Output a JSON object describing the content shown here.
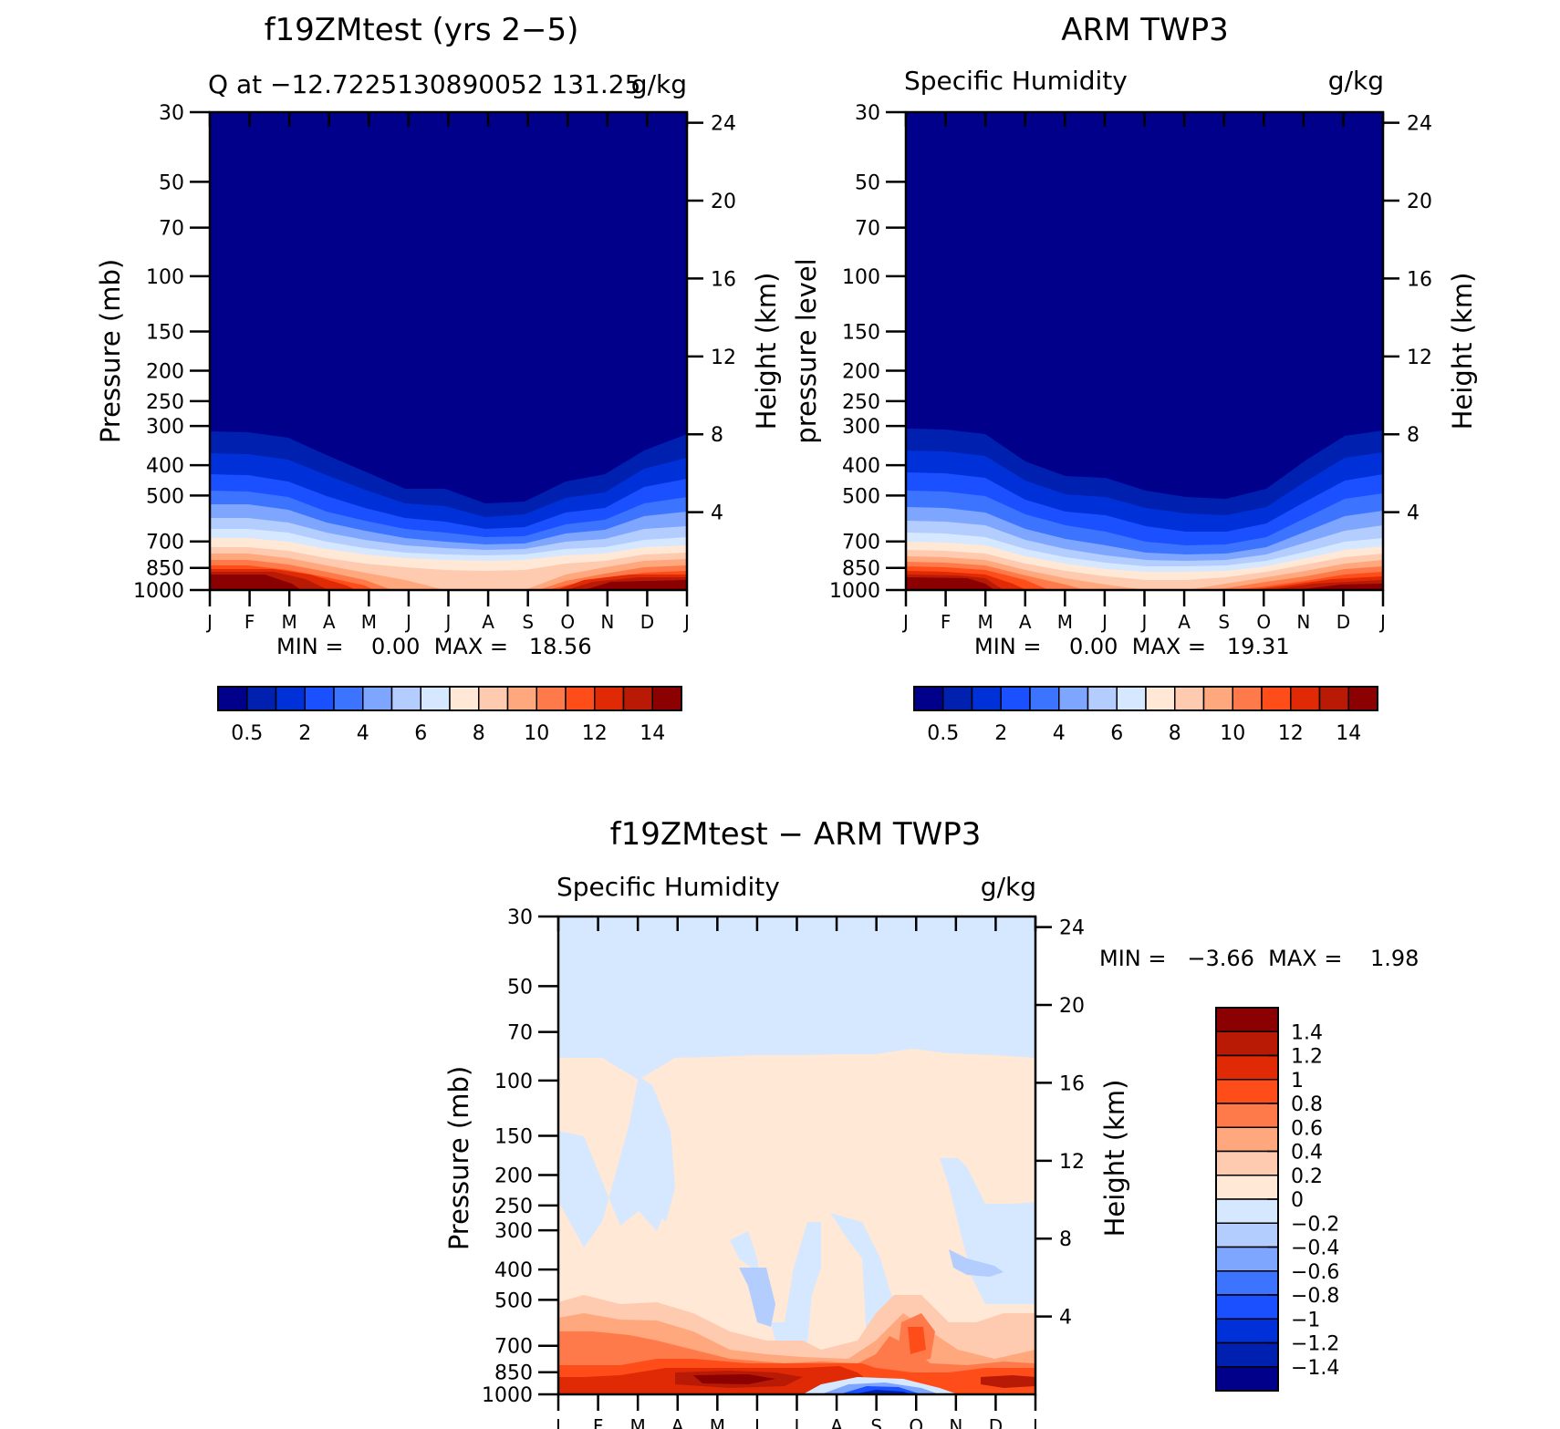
{
  "panels": [
    {
      "id": "model",
      "title": "f19ZMtest (yrs 2−5)",
      "subtitle_left": "Q at −12.7225130890052 131.25",
      "subtitle_right": "g/kg",
      "left_axis_label": "Pressure (mb)",
      "right_axis_label": "Height (km)",
      "minmax": "MIN =    0.00  MAX =   18.56"
    },
    {
      "id": "obs",
      "title": "ARM TWP3",
      "subtitle_left": "Specific Humidity",
      "subtitle_right": "g/kg",
      "left_axis_label": "pressure level",
      "right_axis_label": "Height (km)",
      "minmax": "MIN =    0.00  MAX =   19.31"
    },
    {
      "id": "diff",
      "title": "f19ZMtest − ARM TWP3",
      "subtitle_left": "Specific Humidity",
      "subtitle_right": "g/kg",
      "left_axis_label": "Pressure (mb)",
      "right_axis_label": "Height (km)",
      "minmax": "MIN =   −3.66  MAX =    1.98"
    }
  ],
  "axes": {
    "pressure_ticks": [
      "30",
      "50",
      "70",
      "100",
      "150",
      "200",
      "250",
      "300",
      "400",
      "500",
      "700",
      "850",
      "1000"
    ],
    "pressure_values": [
      30,
      50,
      70,
      100,
      150,
      200,
      250,
      300,
      400,
      500,
      700,
      850,
      1000
    ],
    "height_ticks": [
      "4",
      "8",
      "12",
      "16",
      "20",
      "24"
    ],
    "height_values": [
      4,
      8,
      12,
      16,
      20,
      24
    ],
    "month_ticks": [
      "J",
      "F",
      "M",
      "A",
      "M",
      "J",
      "J",
      "A",
      "S",
      "O",
      "N",
      "D",
      "J"
    ]
  },
  "colorbars": {
    "q_labels": [
      "0.5",
      "2",
      "4",
      "6",
      "8",
      "10",
      "12",
      "14"
    ],
    "q_colors": [
      "#00008b",
      "#0020b0",
      "#0030d8",
      "#1a50ff",
      "#3d74ff",
      "#7ea6ff",
      "#b3cdff",
      "#d6e8ff",
      "#ffe8d6",
      "#ffcbb0",
      "#ffa87e",
      "#ff7a4a",
      "#ff4d1a",
      "#e02a05",
      "#b81a05",
      "#8b0000"
    ],
    "diff_labels": [
      "1.4",
      "1.2",
      "1",
      "0.8",
      "0.6",
      "0.4",
      "0.2",
      "0",
      "−0.2",
      "−0.4",
      "−0.6",
      "−0.8",
      "−1",
      "−1.2",
      "−1.4"
    ],
    "diff_colors": [
      "#8b0000",
      "#b81a05",
      "#e02a05",
      "#ff4d1a",
      "#ff7a4a",
      "#ffa87e",
      "#ffcbb0",
      "#ffe8d6",
      "#d6e8ff",
      "#b3cdff",
      "#7ea6ff",
      "#3d74ff",
      "#1a50ff",
      "#0030d8",
      "#0020b0",
      "#00008b"
    ]
  },
  "chart_data": [
    {
      "type": "heatmap",
      "title": "f19ZMtest (yrs 2−5)",
      "subtitle": "Q at −12.7225130890052 131.25",
      "units": "g/kg",
      "xlabel": "",
      "ylabel": "Pressure (mb)",
      "y2label": "Height (km)",
      "x": [
        "J",
        "F",
        "M",
        "A",
        "M",
        "J",
        "J",
        "A",
        "S",
        "O",
        "N",
        "D",
        "J"
      ],
      "y": [
        1000,
        850,
        700,
        500,
        400,
        300
      ],
      "values": [
        [
          15,
          15,
          14,
          12,
          11,
          10,
          9,
          9,
          9,
          10,
          13,
          14,
          15
        ],
        [
          13,
          13,
          12,
          10,
          9,
          8,
          7,
          7,
          7,
          8,
          11,
          12,
          13
        ],
        [
          9,
          9,
          8,
          6,
          5,
          4,
          4,
          4,
          4,
          5,
          7,
          8,
          9
        ],
        [
          4,
          4,
          3.5,
          2,
          1.5,
          1,
          0.8,
          0.6,
          0.7,
          1.5,
          2.5,
          3.5,
          4
        ],
        [
          2,
          2,
          1.8,
          1,
          0.6,
          0.4,
          0.3,
          0.2,
          0.3,
          0.8,
          1.3,
          1.8,
          2
        ],
        [
          0.6,
          0.6,
          0.5,
          0.3,
          0.2,
          0.1,
          0.1,
          0.1,
          0.1,
          0.2,
          0.4,
          0.5,
          0.6
        ]
      ],
      "ylim": [
        1000,
        30
      ],
      "min": 0.0,
      "max": 18.56
    },
    {
      "type": "heatmap",
      "title": "ARM TWP3",
      "subtitle": "Specific Humidity",
      "units": "g/kg",
      "xlabel": "",
      "ylabel": "pressure level",
      "y2label": "Height (km)",
      "x": [
        "J",
        "F",
        "M",
        "A",
        "M",
        "J",
        "J",
        "A",
        "S",
        "O",
        "N",
        "D",
        "J"
      ],
      "y": [
        1000,
        850,
        700,
        500,
        400,
        300
      ],
      "values": [
        [
          16,
          16,
          15,
          13,
          12,
          11,
          10,
          10,
          11,
          12,
          13,
          14,
          15
        ],
        [
          13,
          13,
          12,
          10,
          9,
          8,
          7,
          7,
          8,
          9,
          11,
          12,
          13
        ],
        [
          9,
          9,
          8,
          6,
          5,
          4,
          3.5,
          3.5,
          4,
          5,
          7,
          8,
          9
        ],
        [
          4,
          4,
          3.5,
          2,
          1.5,
          1.2,
          1,
          0.9,
          1,
          1.5,
          2.5,
          3.5,
          4
        ],
        [
          2,
          2,
          1.8,
          1,
          0.8,
          0.6,
          0.5,
          0.4,
          0.5,
          0.8,
          1.3,
          1.8,
          2
        ],
        [
          0.6,
          0.6,
          0.5,
          0.3,
          0.2,
          0.2,
          0.1,
          0.1,
          0.1,
          0.2,
          0.4,
          0.5,
          0.6
        ]
      ],
      "ylim": [
        1000,
        30
      ],
      "min": 0.0,
      "max": 19.31
    },
    {
      "type": "heatmap",
      "title": "f19ZMtest − ARM TWP3",
      "subtitle": "Specific Humidity",
      "units": "g/kg",
      "xlabel": "",
      "ylabel": "Pressure (mb)",
      "y2label": "Height (km)",
      "x": [
        "J",
        "F",
        "M",
        "A",
        "M",
        "J",
        "J",
        "A",
        "S",
        "O",
        "N",
        "D",
        "J"
      ],
      "y": [
        1000,
        850,
        700,
        500,
        400,
        300,
        200,
        100,
        50
      ],
      "values": [
        [
          0.6,
          0.8,
          0.2,
          1.6,
          1.6,
          1.4,
          0.8,
          -0.4,
          -2.5,
          -1.2,
          -0.4,
          1.0,
          0.6
        ],
        [
          0.8,
          0.8,
          0.4,
          1.4,
          1.4,
          1.2,
          1.0,
          1.2,
          0.2,
          0.6,
          0.2,
          0.6,
          0.8
        ],
        [
          -0.2,
          -0.4,
          -0.6,
          0.6,
          0.4,
          0.2,
          0.2,
          0.2,
          0.2,
          1.0,
          -0.2,
          -0.4,
          -0.2
        ],
        [
          0.6,
          0.6,
          0.4,
          0.4,
          0.2,
          -0.6,
          0.2,
          -0.2,
          0.2,
          0.6,
          0.2,
          0.2,
          0.2
        ],
        [
          0.2,
          0.2,
          0.2,
          0.2,
          0.2,
          -0.2,
          0.2,
          -0.2,
          0.2,
          0.2,
          -0.2,
          -0.2,
          -0.2
        ],
        [
          -0.2,
          -0.2,
          -0.2,
          0.2,
          0.2,
          -0.2,
          0.2,
          -0.2,
          0.2,
          0.2,
          -0.2,
          -0.2,
          -0.2
        ],
        [
          0.2,
          0.2,
          0.2,
          0.2,
          0.2,
          0.2,
          0.2,
          0.2,
          0.2,
          0.2,
          0.2,
          0.2,
          0.2
        ],
        [
          0.2,
          0.2,
          0.2,
          0.2,
          0.2,
          0.2,
          0.2,
          0.2,
          0.2,
          0.2,
          0.2,
          0.2,
          0.2
        ],
        [
          -0.2,
          -0.2,
          -0.2,
          -0.2,
          -0.2,
          -0.2,
          -0.2,
          -0.2,
          -0.2,
          -0.2,
          -0.2,
          -0.2,
          -0.2
        ]
      ],
      "ylim": [
        1000,
        30
      ],
      "min": -3.66,
      "max": 1.98
    }
  ]
}
